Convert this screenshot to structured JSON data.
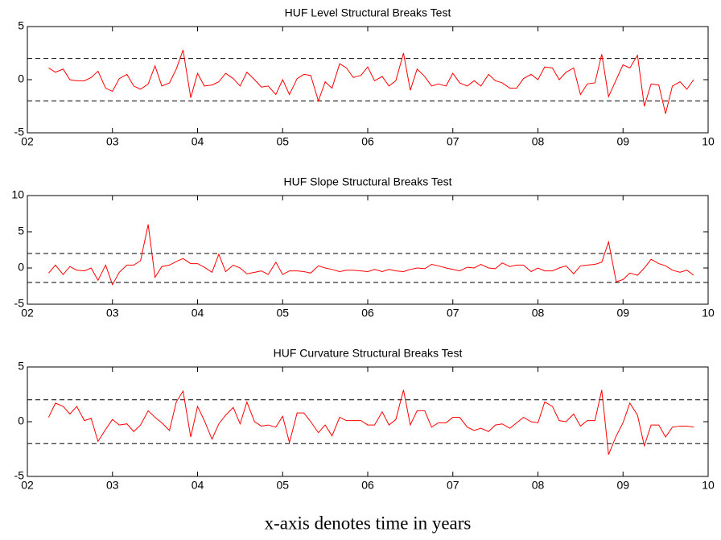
{
  "chart_data": [
    {
      "type": "line",
      "title": "HUF Level Structural Breaks Test",
      "x": [
        2.25,
        2.33,
        2.42,
        2.5,
        2.58,
        2.67,
        2.75,
        2.83,
        2.92,
        3,
        3.08,
        3.17,
        3.25,
        3.33,
        3.42,
        3.5,
        3.58,
        3.67,
        3.75,
        3.83,
        3.92,
        4,
        4.08,
        4.17,
        4.25,
        4.33,
        4.42,
        4.5,
        4.58,
        4.67,
        4.75,
        4.83,
        4.92,
        5,
        5.08,
        5.17,
        5.25,
        5.33,
        5.42,
        5.5,
        5.58,
        5.67,
        5.75,
        5.83,
        5.92,
        6,
        6.08,
        6.17,
        6.25,
        6.33,
        6.42,
        6.5,
        6.58,
        6.67,
        6.75,
        6.83,
        6.92,
        7,
        7.08,
        7.17,
        7.25,
        7.33,
        7.42,
        7.5,
        7.58,
        7.67,
        7.75,
        7.83,
        7.92,
        8,
        8.08,
        8.17,
        8.25,
        8.33,
        8.42,
        8.5,
        8.58,
        8.67,
        8.75,
        8.83,
        8.92,
        9,
        9.08,
        9.17,
        9.25,
        9.33,
        9.42,
        9.5,
        9.58,
        9.67,
        9.75,
        9.83
      ],
      "series": [
        {
          "color": "#ff0000",
          "values": [
            1.1,
            0.7,
            1.0,
            0.0,
            -0.1,
            -0.1,
            0.2,
            0.8,
            -0.8,
            -1.1,
            0.1,
            0.5,
            -0.6,
            -0.9,
            -0.4,
            1.3,
            -0.6,
            -0.3,
            1.0,
            2.8,
            -1.7,
            0.6,
            -0.6,
            -0.5,
            -0.2,
            0.6,
            0.1,
            -0.6,
            0.7,
            0.0,
            -0.7,
            -0.6,
            -1.4,
            0.0,
            -1.4,
            0.1,
            0.5,
            0.4,
            -2.0,
            -0.2,
            -0.8,
            1.5,
            1.1,
            0.2,
            0.4,
            1.2,
            -0.1,
            0.3,
            -0.6,
            -0.1,
            2.5,
            -1.0,
            1.0,
            0.3,
            -0.6,
            -0.4,
            -0.6,
            0.6,
            -0.3,
            -0.6,
            -0.1,
            -0.6,
            0.5,
            -0.1,
            -0.3,
            -0.8,
            -0.8,
            0.1,
            0.5,
            0.0,
            1.2,
            1.1,
            0.0,
            0.7,
            1.1,
            -1.4,
            -0.4,
            -0.3,
            2.4,
            -1.6,
            0.0,
            1.4,
            1.1,
            2.3,
            -2.5,
            -0.4,
            -0.5,
            -3.2,
            -0.6,
            -0.2,
            -0.9,
            0.0
          ]
        }
      ],
      "reference_lines": [
        -2,
        2
      ],
      "xlim": [
        2,
        10
      ],
      "xticks": [
        {
          "value": 2,
          "label": "02"
        },
        {
          "value": 3,
          "label": "03"
        },
        {
          "value": 4,
          "label": "04"
        },
        {
          "value": 5,
          "label": "05"
        },
        {
          "value": 6,
          "label": "06"
        },
        {
          "value": 7,
          "label": "07"
        },
        {
          "value": 8,
          "label": "08"
        },
        {
          "value": 9,
          "label": "09"
        },
        10
      ],
      "ylim": [
        -5,
        5
      ],
      "yticks": [
        -5,
        0,
        5
      ]
    },
    {
      "type": "line",
      "title": "HUF Slope Structural Breaks Test",
      "x": [
        2.25,
        2.33,
        2.42,
        2.5,
        2.58,
        2.67,
        2.75,
        2.83,
        2.92,
        3,
        3.08,
        3.17,
        3.25,
        3.33,
        3.42,
        3.5,
        3.58,
        3.67,
        3.75,
        3.83,
        3.92,
        4,
        4.08,
        4.17,
        4.25,
        4.33,
        4.42,
        4.5,
        4.58,
        4.67,
        4.75,
        4.83,
        4.92,
        5,
        5.08,
        5.17,
        5.25,
        5.33,
        5.42,
        5.5,
        5.58,
        5.67,
        5.75,
        5.83,
        5.92,
        6,
        6.08,
        6.17,
        6.25,
        6.33,
        6.42,
        6.5,
        6.58,
        6.67,
        6.75,
        6.83,
        6.92,
        7,
        7.08,
        7.17,
        7.25,
        7.33,
        7.42,
        7.5,
        7.58,
        7.67,
        7.75,
        7.83,
        7.92,
        8,
        8.08,
        8.17,
        8.25,
        8.33,
        8.42,
        8.5,
        8.58,
        8.67,
        8.75,
        8.83,
        8.92,
        9,
        9.08,
        9.17,
        9.25,
        9.33,
        9.42,
        9.5,
        9.58,
        9.67,
        9.75,
        9.83
      ],
      "series": [
        {
          "color": "#ff0000",
          "values": [
            -0.7,
            0.4,
            -0.9,
            0.2,
            -0.3,
            -0.4,
            0.0,
            -1.7,
            0.4,
            -2.3,
            -0.6,
            0.4,
            0.4,
            1.0,
            6.0,
            -1.3,
            0.2,
            0.4,
            0.9,
            1.3,
            0.6,
            0.6,
            0.1,
            -0.6,
            1.9,
            -0.5,
            0.4,
            0.0,
            -0.8,
            -0.6,
            -0.4,
            -0.9,
            0.8,
            -0.9,
            -0.4,
            -0.4,
            -0.5,
            -0.7,
            0.3,
            0.0,
            -0.2,
            -0.5,
            -0.3,
            -0.3,
            -0.4,
            -0.5,
            -0.2,
            -0.5,
            -0.2,
            -0.4,
            -0.5,
            -0.2,
            0.0,
            -0.1,
            0.5,
            0.3,
            0.0,
            -0.2,
            -0.4,
            0.1,
            0.0,
            0.5,
            0.0,
            -0.1,
            0.7,
            0.2,
            0.4,
            0.4,
            -0.5,
            0.0,
            -0.4,
            -0.4,
            0.0,
            0.3,
            -0.8,
            0.3,
            0.4,
            0.5,
            0.8,
            3.6,
            -1.9,
            -1.6,
            -0.7,
            -1.0,
            0.0,
            1.2,
            0.6,
            0.3,
            -0.3,
            -0.6,
            -0.3,
            -1.0
          ]
        }
      ],
      "reference_lines": [
        -2,
        2
      ],
      "xlim": [
        2,
        10
      ],
      "xticks": [
        {
          "value": 2,
          "label": "02"
        },
        {
          "value": 3,
          "label": "03"
        },
        {
          "value": 4,
          "label": "04"
        },
        {
          "value": 5,
          "label": "05"
        },
        {
          "value": 6,
          "label": "06"
        },
        {
          "value": 7,
          "label": "07"
        },
        {
          "value": 8,
          "label": "08"
        },
        {
          "value": 9,
          "label": "09"
        },
        10
      ],
      "ylim": [
        -5,
        10
      ],
      "yticks": [
        -5,
        0,
        5,
        10
      ]
    },
    {
      "type": "line",
      "title": "HUF Curvature Structural Breaks Test",
      "x": [
        2.25,
        2.33,
        2.42,
        2.5,
        2.58,
        2.67,
        2.75,
        2.83,
        2.92,
        3,
        3.08,
        3.17,
        3.25,
        3.33,
        3.42,
        3.5,
        3.58,
        3.67,
        3.75,
        3.83,
        3.92,
        4,
        4.08,
        4.17,
        4.25,
        4.33,
        4.42,
        4.5,
        4.58,
        4.67,
        4.75,
        4.83,
        4.92,
        5,
        5.08,
        5.17,
        5.25,
        5.33,
        5.42,
        5.5,
        5.58,
        5.67,
        5.75,
        5.83,
        5.92,
        6,
        6.08,
        6.17,
        6.25,
        6.33,
        6.42,
        6.5,
        6.58,
        6.67,
        6.75,
        6.83,
        6.92,
        7,
        7.08,
        7.17,
        7.25,
        7.33,
        7.42,
        7.5,
        7.58,
        7.67,
        7.75,
        7.83,
        7.92,
        8,
        8.08,
        8.17,
        8.25,
        8.33,
        8.42,
        8.5,
        8.58,
        8.67,
        8.75,
        8.83,
        8.92,
        9,
        9.08,
        9.17,
        9.25,
        9.33,
        9.42,
        9.5,
        9.58,
        9.67,
        9.75,
        9.83
      ],
      "series": [
        {
          "color": "#ff0000",
          "values": [
            0.4,
            1.7,
            1.4,
            0.7,
            1.4,
            0.1,
            0.3,
            -1.8,
            -0.7,
            0.2,
            -0.3,
            -0.2,
            -0.9,
            -0.3,
            1.0,
            0.4,
            -0.1,
            -0.8,
            1.8,
            2.8,
            -1.4,
            1.4,
            0.1,
            -1.6,
            -0.2,
            0.6,
            1.3,
            -0.2,
            1.8,
            0.0,
            -0.4,
            -0.3,
            -0.5,
            0.5,
            -1.9,
            0.8,
            0.8,
            0.0,
            -1.0,
            -0.3,
            -1.3,
            0.4,
            0.1,
            0.1,
            0.1,
            -0.3,
            -0.3,
            0.9,
            -0.3,
            0.2,
            2.9,
            -0.3,
            1.0,
            1.0,
            -0.5,
            -0.1,
            -0.1,
            0.4,
            0.4,
            -0.5,
            -0.8,
            -0.6,
            -0.9,
            -0.3,
            -0.2,
            -0.6,
            -0.1,
            0.4,
            0.0,
            -0.1,
            1.8,
            1.4,
            0.1,
            0.0,
            0.7,
            -0.4,
            0.1,
            0.1,
            2.9,
            -3.0,
            -1.3,
            -0.1,
            1.7,
            0.6,
            -2.2,
            -0.3,
            -0.3,
            -1.4,
            -0.5,
            -0.4,
            -0.4,
            -0.5
          ]
        }
      ],
      "reference_lines": [
        -2,
        2
      ],
      "xlim": [
        2,
        10
      ],
      "xticks": [
        {
          "value": 2,
          "label": "02"
        },
        {
          "value": 3,
          "label": "03"
        },
        {
          "value": 4,
          "label": "04"
        },
        {
          "value": 5,
          "label": "05"
        },
        {
          "value": 6,
          "label": "06"
        },
        {
          "value": 7,
          "label": "07"
        },
        {
          "value": 8,
          "label": "08"
        },
        {
          "value": 9,
          "label": "09"
        },
        10
      ],
      "ylim": [
        -5,
        5
      ],
      "yticks": [
        -5,
        0,
        5
      ]
    }
  ],
  "caption": "x-axis denotes time in years"
}
